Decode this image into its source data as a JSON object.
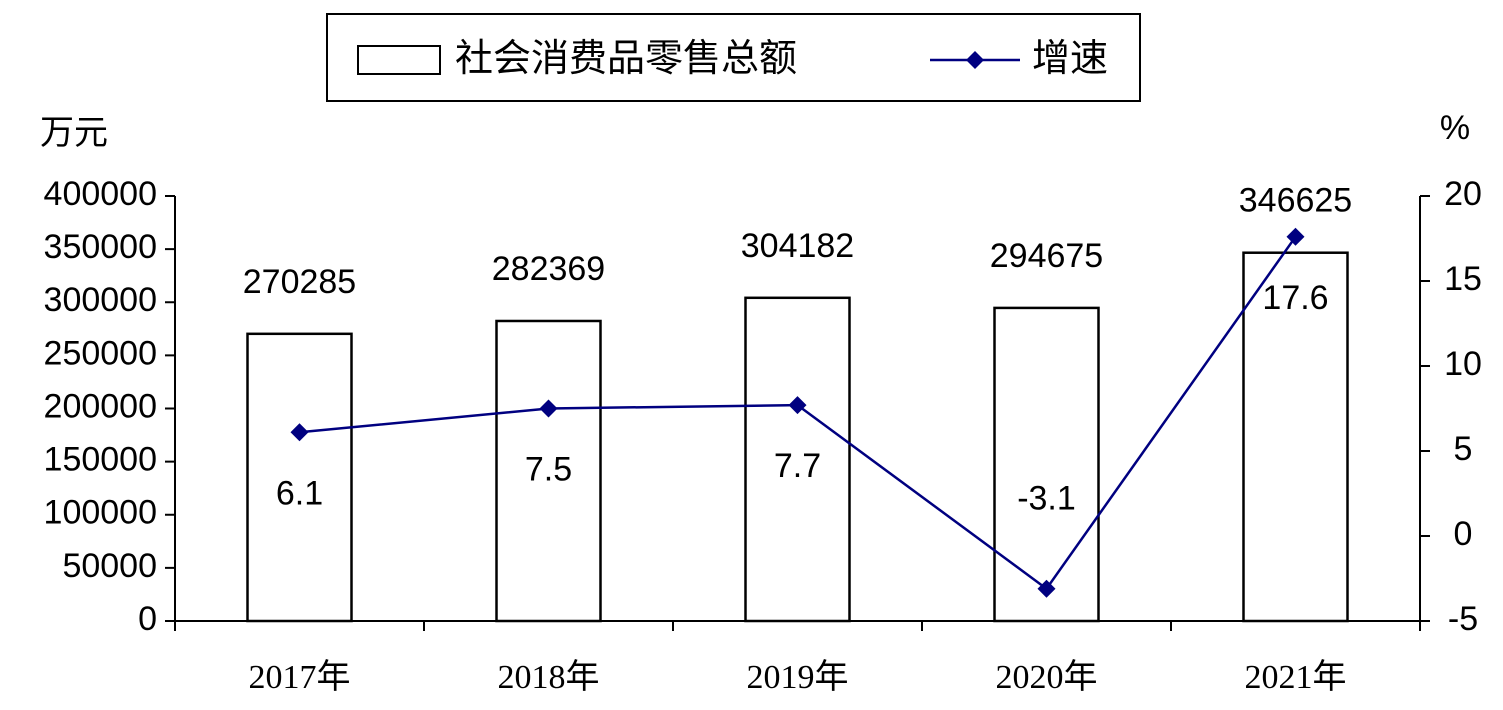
{
  "chart_data": {
    "type": "bar",
    "categories": [
      "2017年",
      "2018年",
      "2019年",
      "2020年",
      "2021年"
    ],
    "ylabel": "万元",
    "y2label": "%",
    "ylim": [
      0,
      400000
    ],
    "yticks": [
      0,
      50000,
      100000,
      150000,
      200000,
      250000,
      300000,
      350000,
      400000
    ],
    "y2lim": [
      -5,
      20
    ],
    "y2ticks": [
      -5,
      0,
      5,
      10,
      15,
      20
    ],
    "legend": "top",
    "series": [
      {
        "name": "社会消费品零售总额",
        "type": "bar",
        "color": "#ffffff",
        "values": [
          270285,
          282369,
          304182,
          294675,
          346625
        ]
      },
      {
        "name": "增速",
        "type": "line",
        "axis": "y2",
        "color": "#000080",
        "values": [
          6.1,
          7.5,
          7.7,
          -3.1,
          17.6
        ]
      }
    ]
  }
}
